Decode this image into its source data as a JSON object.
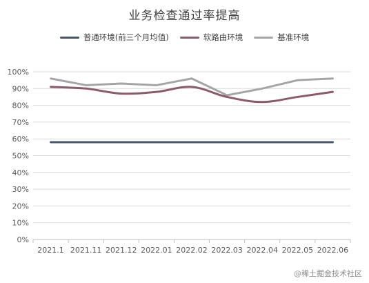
{
  "chart_data": {
    "type": "line",
    "title": "业务检查通过率提高",
    "xlabel": "",
    "ylabel": "",
    "x": [
      "2021.1",
      "2021.11",
      "2021.12",
      "2022.01",
      "2022.02",
      "2022.03",
      "2022.04",
      "2022.05",
      "2022.06"
    ],
    "yticks": [
      "0%",
      "10%",
      "20%",
      "30%",
      "40%",
      "50%",
      "60%",
      "70%",
      "80%",
      "90%",
      "100%"
    ],
    "ylim": [
      0,
      100
    ],
    "grid": true,
    "legend_position": "top-center",
    "series": [
      {
        "name": "普通环境(前三个月均值)",
        "color": "#44546A",
        "smooth": false,
        "values": [
          58,
          58,
          58,
          58,
          58,
          58,
          58,
          58,
          58
        ]
      },
      {
        "name": "软路由环境",
        "color": "#8B5A6C",
        "smooth": true,
        "values": [
          91,
          90,
          87,
          88,
          91,
          85,
          82,
          85,
          88
        ]
      },
      {
        "name": "基准环境",
        "color": "#A5A5A5",
        "smooth": false,
        "values": [
          96,
          92,
          93,
          92,
          96,
          86,
          90,
          95,
          96
        ]
      }
    ]
  },
  "watermark": "@稀土掘金技术社区"
}
